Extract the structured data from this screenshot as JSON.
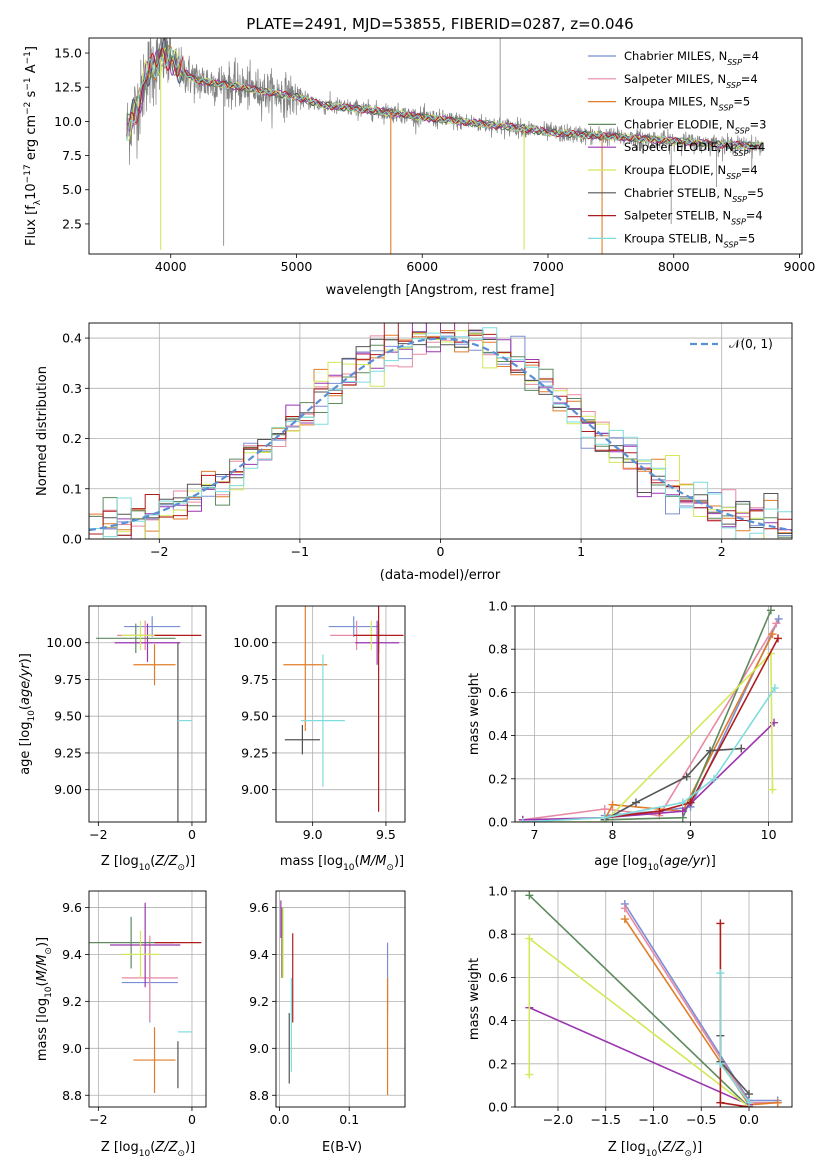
{
  "title": "PLATE=2491, MJD=53855, FIBERID=0287, z=0.046",
  "colors": {
    "Chabrier MILES": "#7b8fd6",
    "Salpeter MILES": "#e88aa3",
    "Kroupa MILES": "#e07d2a",
    "Chabrier ELODIE": "#5e8a5e",
    "Salpeter ELODIE": "#9b35b0",
    "Kroupa ELODIE": "#d3e85a",
    "Chabrier STELIB": "#555555",
    "Salpeter STELIB": "#b01c1c",
    "Kroupa STELIB": "#7fdcdc",
    "data": "#808080",
    "normal": "#5b8fd6"
  },
  "legend_spectrum": [
    {
      "pre": "Chabrier MILES, N",
      "sub": "SSP",
      "post": "=4"
    },
    {
      "pre": "Salpeter MILES, N",
      "sub": "SSP",
      "post": "=4"
    },
    {
      "pre": "Kroupa MILES, N",
      "sub": "SSP",
      "post": "=5"
    },
    {
      "pre": "Chabrier ELODIE, N",
      "sub": "SSP",
      "post": "=3"
    },
    {
      "pre": "Salpeter ELODIE, N",
      "sub": "SSP",
      "post": "=4"
    },
    {
      "pre": "Kroupa ELODIE, N",
      "sub": "SSP",
      "post": "=4"
    },
    {
      "pre": "Chabrier STELIB, N",
      "sub": "SSP",
      "post": "=5"
    },
    {
      "pre": "Salpeter STELIB, N",
      "sub": "SSP",
      "post": "=4"
    },
    {
      "pre": "Kroupa STELIB, N",
      "sub": "SSP",
      "post": "=5"
    }
  ],
  "legend_hist": "𝒩(0, 1)",
  "chart_data": [
    {
      "id": "spectrum",
      "type": "line",
      "title": "PLATE=2491, MJD=53855, FIBERID=0287, z=0.046",
      "xlabel": "wavelength [Angstrom, rest frame]",
      "ylabel": "Flux [f_λ 10^-17 erg cm^-2 s^-1 A^-1]",
      "xlim": [
        3350,
        9020
      ],
      "ylim": [
        0.3,
        16.1
      ],
      "xticks": [
        4000,
        5000,
        6000,
        7000,
        8000,
        9000
      ],
      "yticks": [
        2.5,
        5.0,
        7.5,
        10.0,
        12.5,
        15.0
      ],
      "grid": false,
      "legend_position": "top-right",
      "x_range_data": [
        3650,
        8700
      ],
      "continuum": [
        [
          3650,
          9.2
        ],
        [
          3700,
          10.5
        ],
        [
          3760,
          11.5
        ],
        [
          3800,
          13.5
        ],
        [
          3900,
          14.3
        ],
        [
          3950,
          15.0
        ],
        [
          4050,
          14.0
        ],
        [
          4200,
          13.0
        ],
        [
          4500,
          12.6
        ],
        [
          4800,
          12.1
        ],
        [
          5000,
          11.8
        ],
        [
          5200,
          11.2
        ],
        [
          5500,
          10.9
        ],
        [
          5800,
          10.6
        ],
        [
          6000,
          10.3
        ],
        [
          6300,
          10.0
        ],
        [
          6500,
          9.8
        ],
        [
          6800,
          9.5
        ],
        [
          7000,
          9.2
        ],
        [
          7300,
          9.0
        ],
        [
          7500,
          8.9
        ],
        [
          7800,
          8.7
        ],
        [
          8100,
          8.5
        ],
        [
          8400,
          8.3
        ],
        [
          8700,
          8.2
        ]
      ],
      "model_spikes": [
        [
          3920,
          0.6
        ],
        [
          4420,
          0.9
        ],
        [
          5750,
          0.3
        ],
        [
          6810,
          0.6
        ],
        [
          7430,
          0.3
        ]
      ],
      "data_spikes": [
        [
          6620,
          16.1
        ],
        [
          7980,
          2.5
        ],
        [
          8340,
          5.2
        ],
        [
          8620,
          6.4
        ]
      ]
    },
    {
      "id": "residual_histogram",
      "type": "line",
      "xlabel": "(data-model)/error",
      "ylabel": "Normed distribution",
      "xlim": [
        -2.5,
        2.5
      ],
      "ylim": [
        0,
        0.43
      ],
      "xticks": [
        -2,
        -1,
        0,
        1,
        2
      ],
      "yticks": [
        0.0,
        0.1,
        0.2,
        0.3,
        0.4
      ],
      "grid": true,
      "legend_position": "top-right",
      "bins": 50,
      "series": [
        {
          "name": "𝒩(0, 1)",
          "mean": 0,
          "sigma": 1
        }
      ]
    },
    {
      "id": "age_vs_Z",
      "type": "scatter",
      "xlabel": "Z [log10(Z/Z⊙)]",
      "ylabel": "age  [log10(age/yr)]",
      "xlim": [
        -2.2,
        0.3
      ],
      "ylim": [
        8.78,
        10.25
      ],
      "xticks": [
        -2,
        0
      ],
      "yticks": [
        9.0,
        9.25,
        9.5,
        9.75,
        10.0
      ],
      "grid": true,
      "points": [
        {
          "model": "Chabrier MILES",
          "x": -0.85,
          "xerr": 0.6,
          "y": 10.11,
          "yerr": 0.07
        },
        {
          "model": "Salpeter MILES",
          "x": -1.0,
          "xerr": 0.6,
          "y": 10.05,
          "yerr": 0.1
        },
        {
          "model": "Kroupa MILES",
          "x": -0.8,
          "xerr": 0.45,
          "y": 9.85,
          "yerr": 0.14
        },
        {
          "model": "Chabrier ELODIE",
          "x": -1.2,
          "xerr": 0.85,
          "y": 10.03,
          "yerr": 0.1
        },
        {
          "model": "Salpeter ELODIE",
          "x": -0.95,
          "xerr": 0.7,
          "y": 10.0,
          "yerr": 0.13
        },
        {
          "model": "Kroupa ELODIE",
          "x": -1.1,
          "xerr": 0.4,
          "y": 10.05,
          "yerr": 0.1
        },
        {
          "model": "Chabrier STELIB",
          "x": -0.3,
          "xerr": 0.0,
          "y": 9.34,
          "yerr": 0.66
        },
        {
          "model": "Salpeter STELIB",
          "x": -0.3,
          "xerr": 0.5,
          "y": 10.05,
          "yerr": 0.0
        },
        {
          "model": "Kroupa STELIB",
          "x": -0.3,
          "xerr": 0.0,
          "y": 9.47,
          "yerr": 0.0
        }
      ]
    },
    {
      "id": "age_vs_mass",
      "type": "scatter",
      "xlabel": "mass [log10(M/M⊙)]",
      "ylabel": "",
      "xlim": [
        8.75,
        9.63
      ],
      "ylim": [
        8.78,
        10.25
      ],
      "xticks": [
        9.0,
        9.5
      ],
      "yticks": [
        9.0,
        9.25,
        9.5,
        9.75,
        10.0
      ],
      "grid": true,
      "points": [
        {
          "model": "Chabrier MILES",
          "x": 9.28,
          "xerr": 0.17,
          "y": 10.11,
          "yerr": 0.07
        },
        {
          "model": "Salpeter MILES",
          "x": 9.3,
          "xerr": 0.18,
          "y": 10.05,
          "yerr": 0.1
        },
        {
          "model": "Kroupa MILES",
          "x": 8.95,
          "xerr": 0.15,
          "y": 9.85,
          "yerr": 0.45
        },
        {
          "model": "Chabrier ELODIE",
          "x": 9.45,
          "xerr": 0.0,
          "y": 10.03,
          "yerr": 0.1
        },
        {
          "model": "Salpeter ELODIE",
          "x": 9.44,
          "xerr": 0.15,
          "y": 10.0,
          "yerr": 0.15
        },
        {
          "model": "Kroupa ELODIE",
          "x": 9.4,
          "xerr": 0.05,
          "y": 10.05,
          "yerr": 0.1
        },
        {
          "model": "Chabrier STELIB",
          "x": 8.93,
          "xerr": 0.12,
          "y": 9.34,
          "yerr": 0.1
        },
        {
          "model": "Salpeter STELIB",
          "x": 9.45,
          "xerr": 0.17,
          "y": 10.05,
          "yerr": 1.2
        },
        {
          "model": "Kroupa STELIB",
          "x": 9.07,
          "xerr": 0.15,
          "y": 9.47,
          "yerr": 0.45
        }
      ]
    },
    {
      "id": "mass_weight_vs_age",
      "type": "line",
      "xlabel": "age  [log10(age/yr)]",
      "ylabel": "mass weight",
      "xlim": [
        6.75,
        10.3
      ],
      "ylim": [
        0,
        1.0
      ],
      "xticks": [
        7,
        8,
        9,
        10
      ],
      "yticks": [
        0.0,
        0.2,
        0.4,
        0.6,
        0.8,
        1.0
      ],
      "grid": true,
      "series": [
        {
          "model": "Chabrier MILES",
          "x": [
            7.9,
            8.6,
            9.0,
            10.13
          ],
          "y": [
            0.03,
            0.05,
            0.07,
            0.94
          ]
        },
        {
          "model": "Salpeter MILES",
          "x": [
            6.85,
            7.9,
            8.6,
            10.1
          ],
          "y": [
            0.01,
            0.06,
            0.03,
            0.92
          ]
        },
        {
          "model": "Kroupa MILES",
          "x": [
            7.9,
            8.0,
            8.9,
            10.05
          ],
          "y": [
            0.01,
            0.08,
            0.05,
            0.87
          ]
        },
        {
          "model": "Chabrier ELODIE",
          "x": [
            7.9,
            8.9,
            10.03
          ],
          "y": [
            0.01,
            0.02,
            0.98
          ]
        },
        {
          "model": "Salpeter ELODIE",
          "x": [
            6.85,
            7.9,
            8.9,
            10.07
          ],
          "y": [
            0.01,
            0.02,
            0.05,
            0.46
          ]
        },
        {
          "model": "Kroupa ELODIE",
          "x": [
            6.85,
            7.9,
            10.03,
            10.05
          ],
          "y": [
            0.0,
            0.0,
            0.78,
            0.15
          ]
        },
        {
          "model": "Chabrier STELIB",
          "x": [
            7.9,
            8.3,
            8.95,
            9.25,
            9.65
          ],
          "y": [
            0.01,
            0.09,
            0.21,
            0.33,
            0.34
          ]
        },
        {
          "model": "Salpeter STELIB",
          "x": [
            7.9,
            8.6,
            9.0,
            10.12
          ],
          "y": [
            0.02,
            0.05,
            0.09,
            0.85
          ]
        },
        {
          "model": "Kroupa STELIB",
          "x": [
            6.85,
            7.9,
            8.9,
            9.3,
            10.08
          ],
          "y": [
            0.0,
            0.02,
            0.09,
            0.2,
            0.62
          ]
        }
      ]
    },
    {
      "id": "mass_vs_Z",
      "type": "scatter",
      "xlabel": "Z [log10(Z/Z⊙)]",
      "ylabel": "mass [log10(M/M⊙)]",
      "xlim": [
        -2.2,
        0.3
      ],
      "ylim": [
        8.75,
        9.67
      ],
      "xticks": [
        -2,
        0
      ],
      "yticks": [
        8.8,
        9.0,
        9.2,
        9.4,
        9.6
      ],
      "grid": true,
      "points": [
        {
          "model": "Chabrier MILES",
          "x": -0.9,
          "xerr": 0.6,
          "y": 9.28,
          "yerr": 0.17
        },
        {
          "model": "Salpeter MILES",
          "x": -0.9,
          "xerr": 0.6,
          "y": 9.3,
          "yerr": 0.18
        },
        {
          "model": "Kroupa MILES",
          "x": -0.8,
          "xerr": 0.45,
          "y": 8.95,
          "yerr": 0.14
        },
        {
          "model": "Chabrier ELODIE",
          "x": -1.3,
          "xerr": 0.9,
          "y": 9.45,
          "yerr": 0.11
        },
        {
          "model": "Salpeter ELODIE",
          "x": -1.0,
          "xerr": 0.75,
          "y": 9.44,
          "yerr": 0.18
        },
        {
          "model": "Kroupa ELODIE",
          "x": -1.1,
          "xerr": 0.4,
          "y": 9.4,
          "yerr": 0.1
        },
        {
          "model": "Chabrier STELIB",
          "x": -0.3,
          "xerr": 0.0,
          "y": 8.93,
          "yerr": 0.1
        },
        {
          "model": "Salpeter STELIB",
          "x": -0.3,
          "xerr": 0.5,
          "y": 9.45,
          "yerr": 0.0
        },
        {
          "model": "Kroupa STELIB",
          "x": -0.3,
          "xerr": 0.0,
          "y": 9.07,
          "yerr": 0.0
        }
      ]
    },
    {
      "id": "mass_vs_ebv",
      "type": "scatter",
      "xlabel": "E(B-V)",
      "ylabel": "",
      "xlim": [
        -0.005,
        0.18
      ],
      "ylim": [
        8.75,
        9.67
      ],
      "xticks": [
        0.0,
        0.1
      ],
      "yticks": [
        8.8,
        9.0,
        9.2,
        9.4,
        9.6
      ],
      "grid": true,
      "points": [
        {
          "model": "Chabrier MILES",
          "x": 0.155,
          "xerr": 0,
          "y": 9.3,
          "yerr": 0.15
        },
        {
          "model": "Salpeter MILES",
          "x": 0.003,
          "xerr": 0,
          "y": 9.45,
          "yerr": 0.15
        },
        {
          "model": "Kroupa MILES",
          "x": 0.155,
          "xerr": 0,
          "y": 9.05,
          "yerr": 0.25
        },
        {
          "model": "Chabrier ELODIE",
          "x": 0.004,
          "xerr": 0,
          "y": 9.45,
          "yerr": 0.15
        },
        {
          "model": "Salpeter ELODIE",
          "x": 0.002,
          "xerr": 0,
          "y": 9.55,
          "yerr": 0.08
        },
        {
          "model": "Kroupa ELODIE",
          "x": 0.005,
          "xerr": 0,
          "y": 9.45,
          "yerr": 0.15
        },
        {
          "model": "Chabrier STELIB",
          "x": 0.014,
          "xerr": 0,
          "y": 9.0,
          "yerr": 0.15
        },
        {
          "model": "Salpeter STELIB",
          "x": 0.019,
          "xerr": 0,
          "y": 9.3,
          "yerr": 0.19
        },
        {
          "model": "Kroupa STELIB",
          "x": 0.017,
          "xerr": 0,
          "y": 9.1,
          "yerr": 0.2
        }
      ]
    },
    {
      "id": "mass_weight_vs_Z",
      "type": "line",
      "xlabel": "Z [log10(Z/Z⊙)]",
      "ylabel": "mass weight",
      "xlim": [
        -2.45,
        0.45
      ],
      "ylim": [
        0,
        1.0
      ],
      "xticks": [
        -2.0,
        -1.5,
        -1.0,
        -0.5,
        0.0
      ],
      "yticks": [
        0.0,
        0.2,
        0.4,
        0.6,
        0.8,
        1.0
      ],
      "grid": true,
      "series": [
        {
          "model": "Chabrier MILES",
          "x": [
            -1.3,
            0.0,
            0.3
          ],
          "y": [
            0.94,
            0.03,
            0.03
          ]
        },
        {
          "model": "Salpeter MILES",
          "x": [
            -1.3,
            0.0,
            0.3
          ],
          "y": [
            0.92,
            0.02,
            0.02
          ]
        },
        {
          "model": "Kroupa MILES",
          "x": [
            -1.3,
            0.0,
            0.3
          ],
          "y": [
            0.87,
            0.01,
            0.02
          ]
        },
        {
          "model": "Chabrier ELODIE",
          "x": [
            -2.3,
            0.0
          ],
          "y": [
            0.98,
            0.0
          ]
        },
        {
          "model": "Salpeter ELODIE",
          "x": [
            -2.3,
            0.0
          ],
          "y": [
            0.46,
            0.01
          ]
        },
        {
          "model": "Kroupa ELODIE",
          "x": [
            -2.3,
            -2.3,
            0.0
          ],
          "y": [
            0.15,
            0.78,
            0.0
          ]
        },
        {
          "model": "Chabrier STELIB",
          "x": [
            -0.3,
            -0.3,
            0.0
          ],
          "y": [
            0.33,
            0.21,
            0.06
          ]
        },
        {
          "model": "Salpeter STELIB",
          "x": [
            -0.3,
            -0.3,
            0.0
          ],
          "y": [
            0.85,
            0.02,
            0.0
          ]
        },
        {
          "model": "Kroupa STELIB",
          "x": [
            -0.3,
            -0.3,
            0.0
          ],
          "y": [
            0.62,
            0.2,
            0.02
          ]
        }
      ]
    }
  ]
}
